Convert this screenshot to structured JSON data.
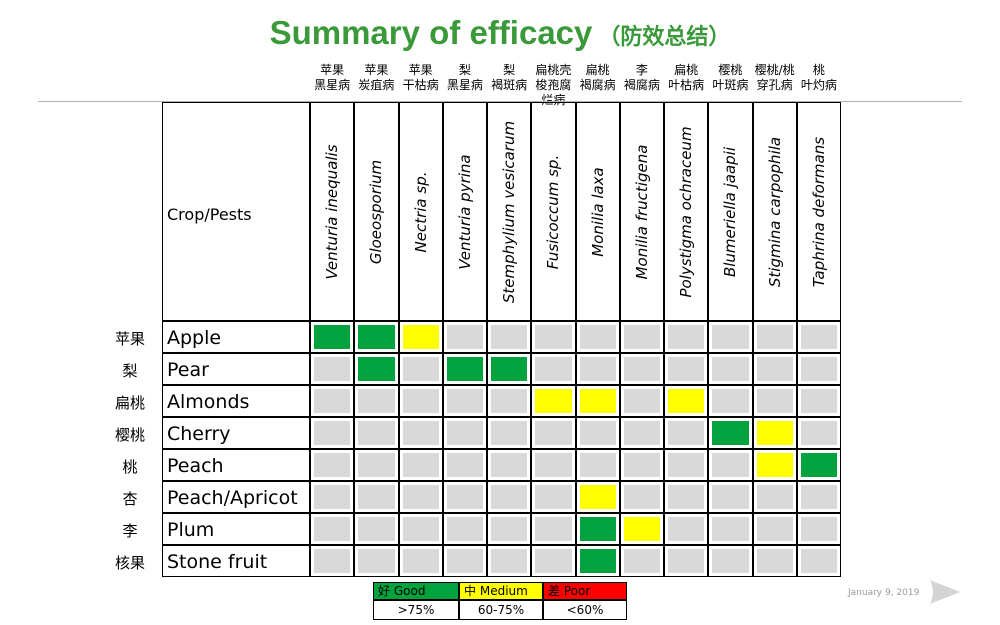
{
  "title": "Summary of efficacy",
  "title_cn": "（防效总结）",
  "crop_pests_label": "Crop/Pests",
  "date": "January 9, 2019",
  "icons": {
    "next": "next-arrow-icon"
  },
  "colors": {
    "good": "#00a33d",
    "medium": "#ffff00",
    "poor": "#ff0000",
    "none": "#d9d9d9",
    "title": "#3a9a3a"
  },
  "chart_data": {
    "type": "table",
    "title": "Summary of efficacy",
    "pests": [
      "Venturia inequalis",
      "Gloeosporium",
      "Nectria sp.",
      "Venturia pyrina",
      "Stemphylium vesicarum",
      "Fusicoccum sp.",
      "Monilia laxa",
      "Monilia fructigena",
      "Polystigma ochraceum",
      "Blumeriella jaapii",
      "Stigmina carpophila",
      "Taphrina deformans"
    ],
    "pests_cn": [
      [
        "苹果",
        "黑星病"
      ],
      [
        "苹果",
        "炭疽病"
      ],
      [
        "苹果",
        "干枯病"
      ],
      [
        "梨",
        "黑星病"
      ],
      [
        "梨",
        "褐斑病"
      ],
      [
        "扁桃壳",
        "梭孢腐",
        "烂病"
      ],
      [
        "扁桃",
        "褐腐病"
      ],
      [
        "李",
        "褐腐病"
      ],
      [
        "扁桃",
        "叶枯病"
      ],
      [
        "樱桃",
        "叶斑病"
      ],
      [
        "樱桃/桃",
        "穿孔病"
      ],
      [
        "桃",
        "叶灼病"
      ]
    ],
    "crops": [
      "Apple",
      "Pear",
      "Almonds",
      "Cherry",
      "Peach",
      "Peach/Apricot",
      "Plum",
      "Stone fruit"
    ],
    "crops_cn": [
      "苹果",
      "梨",
      "扁桃",
      "樱桃",
      "桃",
      "杏",
      "李",
      "核果"
    ],
    "ratings": [
      [
        "G",
        "G",
        "M",
        "-",
        "-",
        "-",
        "-",
        "-",
        "-",
        "-",
        "-",
        "-"
      ],
      [
        "-",
        "G",
        "-",
        "G",
        "G",
        "-",
        "-",
        "-",
        "-",
        "-",
        "-",
        "-"
      ],
      [
        "-",
        "-",
        "-",
        "-",
        "-",
        "M",
        "M",
        "-",
        "M",
        "-",
        "-",
        "-"
      ],
      [
        "-",
        "-",
        "-",
        "-",
        "-",
        "-",
        "-",
        "-",
        "-",
        "G",
        "M",
        "-"
      ],
      [
        "-",
        "-",
        "-",
        "-",
        "-",
        "-",
        "-",
        "-",
        "-",
        "-",
        "M",
        "G"
      ],
      [
        "-",
        "-",
        "-",
        "-",
        "-",
        "-",
        "M",
        "-",
        "-",
        "-",
        "-",
        "-"
      ],
      [
        "-",
        "-",
        "-",
        "-",
        "-",
        "-",
        "G",
        "M",
        "-",
        "-",
        "-",
        "-"
      ],
      [
        "-",
        "-",
        "-",
        "-",
        "-",
        "-",
        "G",
        "-",
        "-",
        "-",
        "-",
        "-"
      ]
    ],
    "legend": [
      {
        "key": "G",
        "cn": "好",
        "label": "Good",
        "range": ">75%",
        "color": "#00a33d"
      },
      {
        "key": "M",
        "cn": "中",
        "label": "Medium",
        "range": "60-75%",
        "color": "#ffff00"
      },
      {
        "key": "P",
        "cn": "差",
        "label": "Poor",
        "range": "<60%",
        "color": "#ff0000"
      }
    ]
  }
}
